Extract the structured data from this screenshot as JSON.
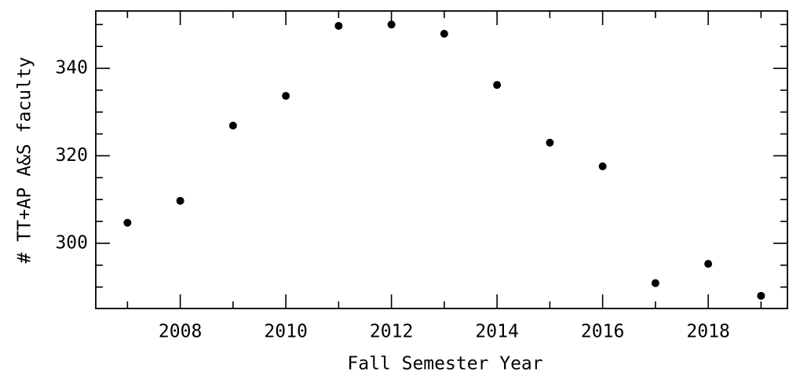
{
  "chart_data": {
    "type": "scatter",
    "x": [
      2007,
      2008,
      2009,
      2010,
      2011,
      2012,
      2013,
      2014,
      2015,
      2016,
      2017,
      2018,
      2019
    ],
    "values": [
      304.7,
      309.7,
      326.9,
      333.7,
      349.7,
      350.0,
      347.9,
      336.2,
      323.0,
      317.6,
      290.9,
      295.3,
      288.0
    ],
    "color": "#000000",
    "xlabel": "Fall Semester Year",
    "ylabel": "# TT+AP A&S faculty",
    "xlim": [
      2006.4,
      2019.5
    ],
    "ylim": [
      285.1,
      353.1
    ],
    "xticks": [
      2008,
      2010,
      2012,
      2014,
      2016,
      2018
    ],
    "yticks": [
      300,
      320,
      340
    ],
    "xminorticks": [
      2007,
      2009,
      2011,
      2013,
      2015,
      2017,
      2019
    ],
    "yminorticks": [
      290,
      295,
      305,
      310,
      315,
      325,
      330,
      335,
      345,
      350
    ]
  }
}
